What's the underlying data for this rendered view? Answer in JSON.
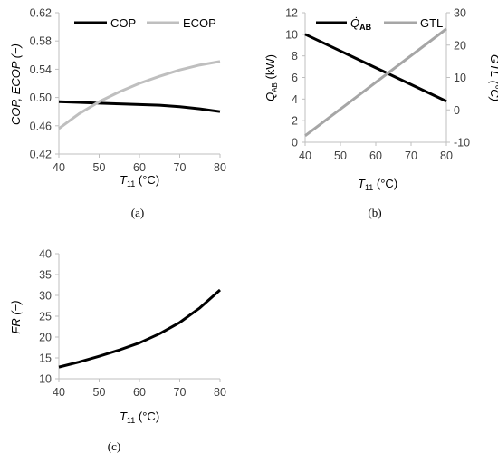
{
  "chart_data": [
    {
      "panel": "(a)",
      "type": "line",
      "xlabel": "T11 (°C)",
      "ylabel": "COP, ECOP (−)",
      "xlim": [
        40,
        80
      ],
      "ylim": [
        0.42,
        0.62
      ],
      "xticks": [
        "40",
        "50",
        "60",
        "70",
        "80"
      ],
      "yticks": [
        "0.42",
        "0.46",
        "0.50",
        "0.54",
        "0.58",
        "0.62"
      ],
      "legend_position": "top",
      "series": [
        {
          "name": "COP",
          "color": "#000000",
          "x": [
            40,
            45,
            50,
            55,
            60,
            65,
            70,
            75,
            80
          ],
          "y": [
            0.494,
            0.493,
            0.492,
            0.491,
            0.49,
            0.489,
            0.487,
            0.484,
            0.48
          ]
        },
        {
          "name": "ECOP",
          "color": "#bfbfbf",
          "x": [
            40,
            45,
            50,
            55,
            60,
            65,
            70,
            75,
            80
          ],
          "y": [
            0.456,
            0.477,
            0.494,
            0.508,
            0.52,
            0.53,
            0.539,
            0.546,
            0.551
          ]
        }
      ]
    },
    {
      "panel": "(b)",
      "type": "line",
      "xlabel": "T11 (°C)",
      "ylabel": "QAB (kW)",
      "y2label": "GTL (°C)",
      "xlim": [
        40,
        80
      ],
      "ylim": [
        0,
        12
      ],
      "y2lim": [
        -10,
        30
      ],
      "xticks": [
        "40",
        "50",
        "60",
        "70",
        "80"
      ],
      "yticks": [
        "0",
        "2",
        "4",
        "6",
        "8",
        "10",
        "12"
      ],
      "y2ticks": [
        "-10",
        "0",
        "10",
        "20",
        "30"
      ],
      "legend_position": "top",
      "series": [
        {
          "name": "Q̇AB",
          "axis": "left",
          "color": "#000000",
          "x": [
            40,
            80
          ],
          "y": [
            10.0,
            3.8
          ]
        },
        {
          "name": "GTL",
          "axis": "right",
          "color": "#a6a6a6",
          "x": [
            40,
            80
          ],
          "y": [
            -8,
            25
          ]
        }
      ]
    },
    {
      "panel": "(c)",
      "type": "line",
      "xlabel": "T11 (°C)",
      "ylabel": "FR (−)",
      "xlim": [
        40,
        80
      ],
      "ylim": [
        10,
        40
      ],
      "xticks": [
        "40",
        "50",
        "60",
        "70",
        "80"
      ],
      "yticks": [
        "10",
        "15",
        "20",
        "25",
        "30",
        "35",
        "40"
      ],
      "series": [
        {
          "name": "FR",
          "color": "#000000",
          "x": [
            40,
            45,
            50,
            55,
            60,
            65,
            70,
            75,
            80
          ],
          "y": [
            12.8,
            14.0,
            15.4,
            16.9,
            18.6,
            20.8,
            23.5,
            27.0,
            31.3
          ]
        }
      ]
    }
  ],
  "panels": {
    "a": {
      "label": "(a)",
      "x_title_main": "T",
      "x_title_sub": "11",
      "x_title_unit": " (°C)",
      "y_title": "COP, ECOP (−)"
    },
    "b": {
      "label": "(b)",
      "x_title_main": "T",
      "x_title_sub": "11",
      "x_title_unit": " (°C)",
      "y_title_main": "Q",
      "y_title_sub": "AB",
      "y_title_unit": " (kW)",
      "y2_title": "GTL (°C)",
      "legend_q_main": "Q̇",
      "legend_q_sub": "AB",
      "legend_gtl": "GTL"
    },
    "c": {
      "label": "(c)",
      "x_title_main": "T",
      "x_title_sub": "11",
      "x_title_unit": " (°C)",
      "y_title": "FR (−)"
    }
  }
}
